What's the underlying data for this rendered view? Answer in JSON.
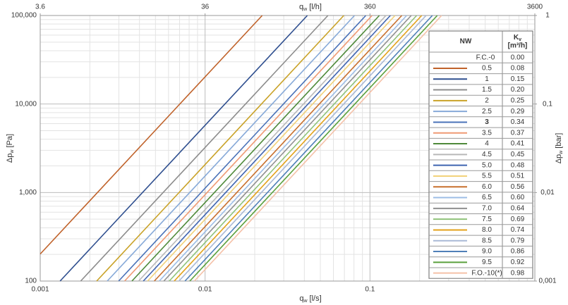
{
  "chart_data": {
    "type": "line",
    "log_x": true,
    "log_y": true,
    "grid": true,
    "minor_grid": true,
    "x_label": {
      "main": "q",
      "sub": "w",
      "unit": " [l/s]"
    },
    "x2_label": {
      "main": "q",
      "sub": "w",
      "unit": " [l/h]"
    },
    "y_label": {
      "main": "Δp",
      "sub": "w",
      "unit": " [Pa]"
    },
    "y2_label": {
      "main": "Δp",
      "sub": "w",
      "unit": " [bar]"
    },
    "xlim": [
      0.001,
      1
    ],
    "xticks": [
      0.001,
      0.01,
      0.1
    ],
    "x2lim": [
      3.6,
      3600
    ],
    "x2ticks": [
      3.6,
      36,
      360,
      3600
    ],
    "ylim": [
      100,
      100000
    ],
    "yticks": [
      100,
      {
        "value": 1000,
        "label": "1,000"
      },
      {
        "value": 10000,
        "label": "10,000"
      },
      {
        "value": 100000,
        "label": "100,000"
      }
    ],
    "y2lim": [
      0.001,
      1
    ],
    "y2ticks": [
      {
        "value": 0.001,
        "label": "0,001"
      },
      {
        "value": 0.01,
        "label": "0,01"
      },
      {
        "value": 0.1,
        "label": "0,1"
      },
      1
    ],
    "legend_header": {
      "name": "NW",
      "kv": {
        "main": "K",
        "sub": "v",
        "unit": "[m³/h]"
      }
    },
    "closed_row": {
      "name": "F.C.-0",
      "kv": "0.00"
    },
    "series": [
      {
        "name": "0.5",
        "kv": "0.08",
        "color": "#c0622a",
        "x": [
          0.001,
          0.0222
        ],
        "values": [
          202,
          100000
        ]
      },
      {
        "name": "1",
        "kv": "0.15",
        "color": "#2f4f8f",
        "x": [
          0.00132,
          0.0417
        ],
        "values": [
          100,
          100000
        ]
      },
      {
        "name": "1.5",
        "kv": "0.20",
        "color": "#8c8c8c",
        "x": [
          0.00176,
          0.0556
        ],
        "values": [
          100,
          100000
        ]
      },
      {
        "name": "2",
        "kv": "0.25",
        "color": "#c9a227",
        "x": [
          0.0022,
          0.0694
        ],
        "values": [
          100,
          100000
        ]
      },
      {
        "name": "2.5",
        "kv": "0.29",
        "color": "#86a9d8",
        "x": [
          0.00255,
          0.0806
        ],
        "values": [
          100,
          100000
        ]
      },
      {
        "name": "3",
        "kv": "0.34",
        "bold": true,
        "color": "#4a72b8",
        "x": [
          0.00299,
          0.0944
        ],
        "values": [
          100,
          100000
        ]
      },
      {
        "name": "3.5",
        "kv": "0.37",
        "color": "#ef9a74",
        "x": [
          0.00325,
          0.103
        ],
        "values": [
          100,
          100000
        ]
      },
      {
        "name": "4",
        "kv": "0.41",
        "color": "#4f8a3a",
        "x": [
          0.0036,
          0.114
        ],
        "values": [
          100,
          100000
        ]
      },
      {
        "name": "4.5",
        "kv": "0.45",
        "color": "#b8b8b8",
        "x": [
          0.00395,
          0.125
        ],
        "values": [
          100,
          100000
        ]
      },
      {
        "name": "5.0",
        "kv": "0.48",
        "color": "#3f64b0",
        "x": [
          0.00422,
          0.133
        ],
        "values": [
          100,
          100000
        ]
      },
      {
        "name": "5.5",
        "kv": "0.51",
        "color": "#f2d27a",
        "x": [
          0.00448,
          0.142
        ],
        "values": [
          100,
          100000
        ]
      },
      {
        "name": "6.0",
        "kv": "0.56",
        "color": "#c8702e",
        "x": [
          0.00492,
          0.156
        ],
        "values": [
          100,
          100000
        ]
      },
      {
        "name": "6.5",
        "kv": "0.60",
        "color": "#9dbde6",
        "x": [
          0.00527,
          0.167
        ],
        "values": [
          100,
          100000
        ]
      },
      {
        "name": "7.0",
        "kv": "0.64",
        "color": "#909090",
        "x": [
          0.00562,
          0.178
        ],
        "values": [
          100,
          100000
        ]
      },
      {
        "name": "7.5",
        "kv": "0.69",
        "color": "#8fc27a",
        "x": [
          0.00606,
          0.192
        ],
        "values": [
          100,
          100000
        ]
      },
      {
        "name": "8.0",
        "kv": "0.74",
        "color": "#e3a21a",
        "x": [
          0.0065,
          0.206
        ],
        "values": [
          100,
          100000
        ]
      },
      {
        "name": "8.5",
        "kv": "0.79",
        "color": "#a9b9d6",
        "x": [
          0.00694,
          0.219
        ],
        "values": [
          100,
          100000
        ]
      },
      {
        "name": "9.0",
        "kv": "0.86",
        "color": "#4f7fb8",
        "x": [
          0.00755,
          0.239
        ],
        "values": [
          100,
          100000
        ]
      },
      {
        "name": "9.5",
        "kv": "0.92",
        "color": "#5aa03c",
        "x": [
          0.00808,
          0.256
        ],
        "values": [
          100,
          100000
        ]
      },
      {
        "name": "F.O.-10(*)",
        "kv": "0.98",
        "color": "#f5c1a8",
        "x": [
          0.00861,
          0.272
        ],
        "values": [
          100,
          100000
        ]
      }
    ]
  }
}
